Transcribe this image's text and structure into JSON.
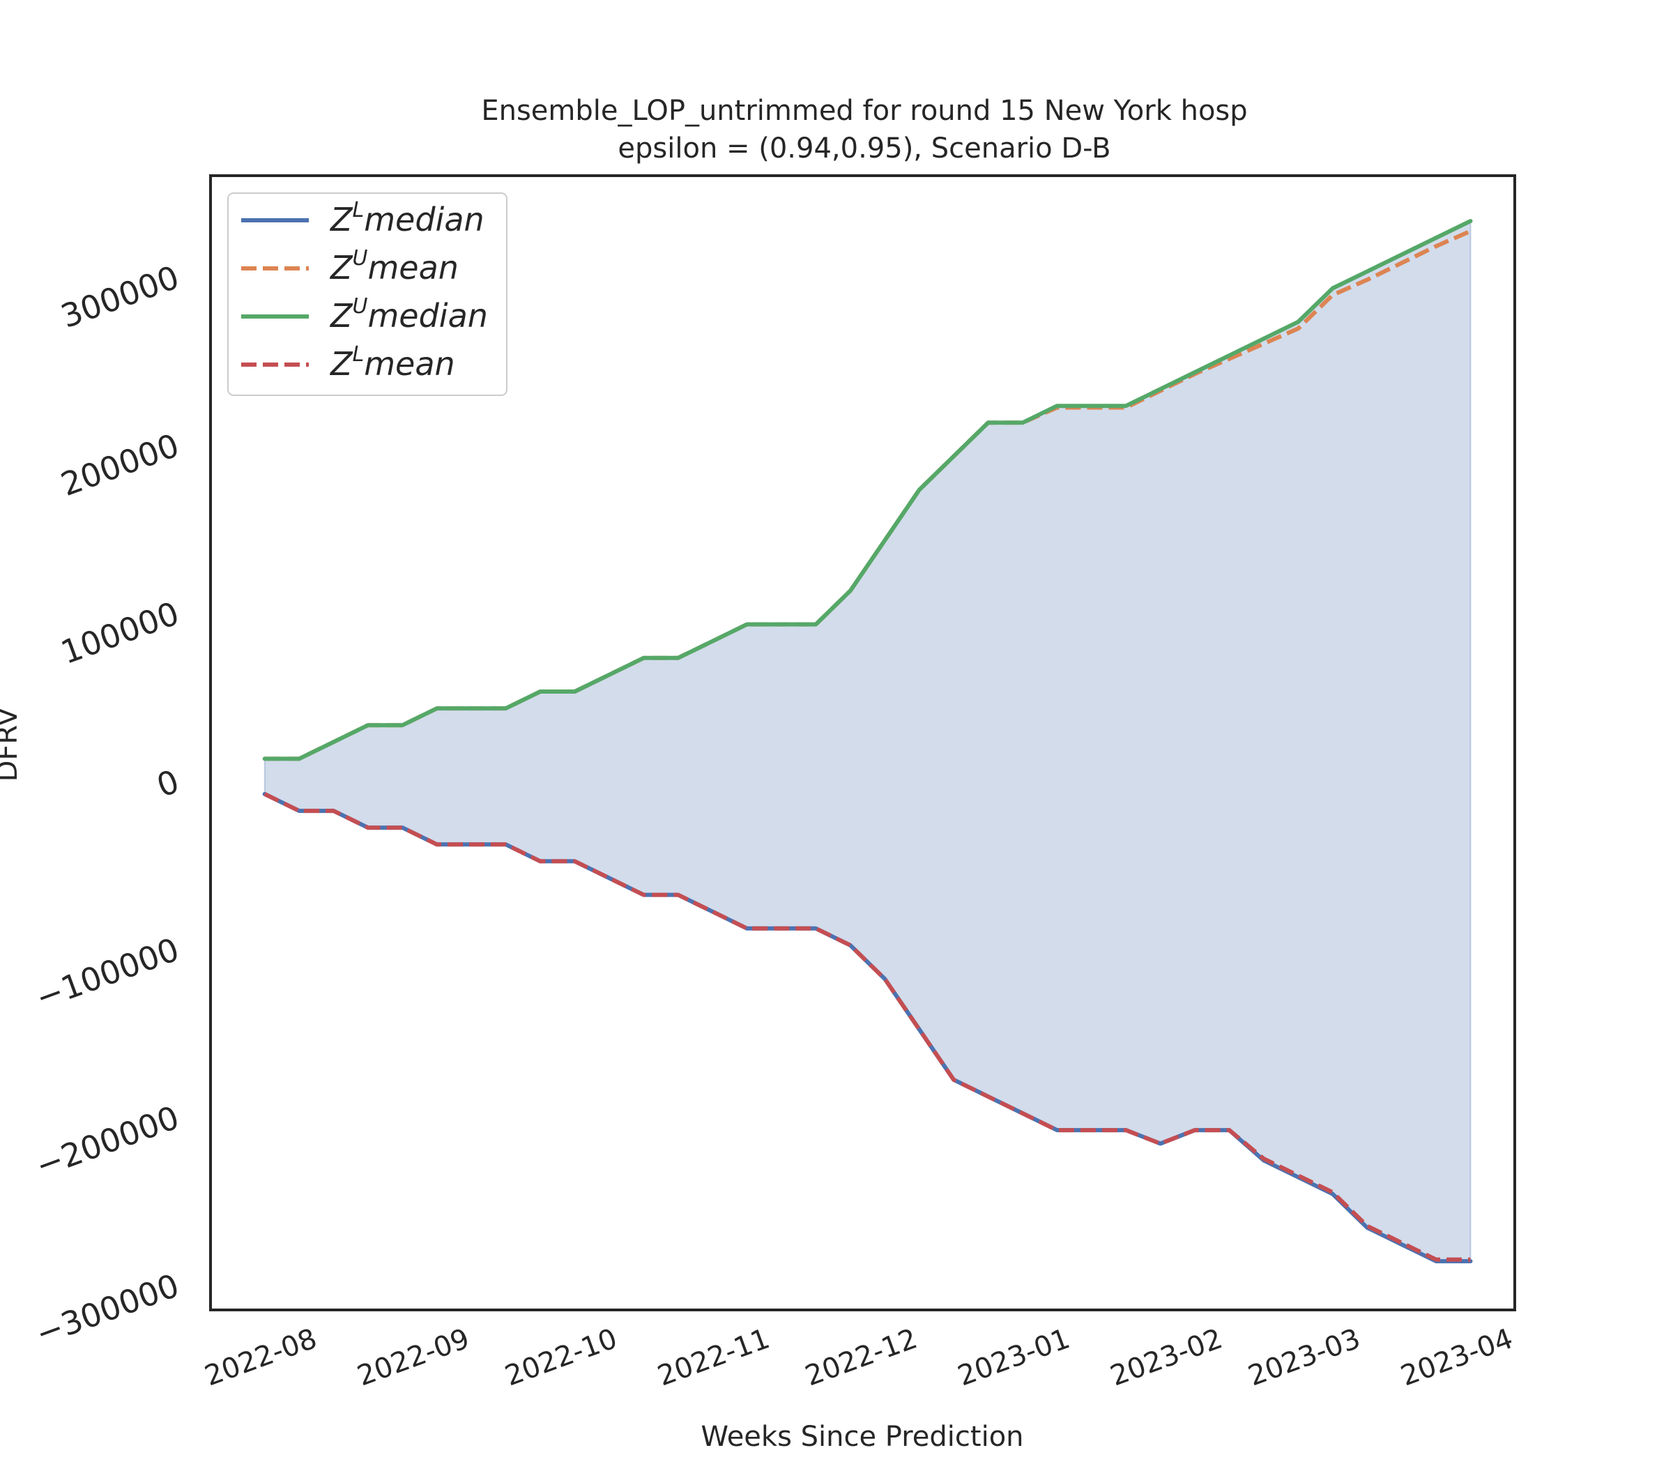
{
  "chart_data": {
    "type": "line",
    "title": "Ensemble_LOP_untrimmed for round 15 New York  hosp",
    "subtitle": "epsilon = (0.94,0.95), Scenario D-B",
    "xlabel": "Weeks Since Prediction",
    "ylabel": "DFRV",
    "xlim": [
      "2022-07-12",
      "2023-04-03"
    ],
    "ylim": [
      -315000,
      360000
    ],
    "xticks": [
      "2022-08-01",
      "2022-09-01",
      "2022-10-01",
      "2022-11-01",
      "2022-12-01",
      "2023-01-01",
      "2023-02-01",
      "2023-03-01",
      "2023-04-01"
    ],
    "xtick_labels": [
      "2022-08",
      "2022-09",
      "2022-10",
      "2022-11",
      "2022-12",
      "2023-01",
      "2023-02",
      "2023-03",
      "2023-04"
    ],
    "yticks": [
      -300000,
      -200000,
      -100000,
      0,
      100000,
      200000,
      300000
    ],
    "ytick_labels": [
      "−300000",
      "−200000",
      "−100000",
      "0",
      "100000",
      "200000",
      "300000"
    ],
    "grid": false,
    "legend_position": "top-left",
    "x": [
      "2022-07-23",
      "2022-07-30",
      "2022-08-06",
      "2022-08-13",
      "2022-08-20",
      "2022-08-27",
      "2022-09-03",
      "2022-09-10",
      "2022-09-17",
      "2022-09-24",
      "2022-10-01",
      "2022-10-08",
      "2022-10-15",
      "2022-10-22",
      "2022-10-29",
      "2022-11-05",
      "2022-11-12",
      "2022-11-19",
      "2022-11-26",
      "2022-12-03",
      "2022-12-10",
      "2022-12-17",
      "2022-12-24",
      "2022-12-31",
      "2023-01-07",
      "2023-01-14",
      "2023-01-21",
      "2023-01-28",
      "2023-02-04",
      "2023-02-11",
      "2023-02-18",
      "2023-02-25",
      "2023-03-04",
      "2023-03-11",
      "2023-03-18",
      "2023-03-25"
    ],
    "series": [
      {
        "name": "Z^L median",
        "name_base": "Z",
        "name_sup": "L",
        "name_rest": "median",
        "color": "#4c72b0",
        "dash": "solid",
        "values": [
          -8000,
          -18000,
          -18000,
          -28000,
          -28000,
          -38000,
          -38000,
          -38000,
          -48000,
          -48000,
          -58000,
          -68000,
          -68000,
          -78000,
          -88000,
          -88000,
          -88000,
          -98000,
          -118000,
          -148000,
          -178000,
          -188000,
          -198000,
          -208000,
          -208000,
          -208000,
          -216000,
          -208000,
          -208000,
          -226000,
          -236000,
          -246000,
          -266000,
          -276000,
          -286000,
          -286000
        ]
      },
      {
        "name": "Z^U mean",
        "name_base": "Z",
        "name_sup": "U",
        "name_rest": "mean",
        "color": "#dd8452",
        "dash": "dashed",
        "values": [
          13000,
          13000,
          23000,
          33000,
          33000,
          43000,
          43000,
          43000,
          53000,
          53000,
          63000,
          73000,
          73000,
          83000,
          93000,
          93000,
          93000,
          113000,
          143000,
          173000,
          193000,
          213000,
          213000,
          222000,
          222000,
          222000,
          232000,
          242000,
          251000,
          260000,
          269000,
          289000,
          298000,
          308000,
          318000,
          327000
        ]
      },
      {
        "name": "Z^U median",
        "name_base": "Z",
        "name_sup": "U",
        "name_rest": "median",
        "color": "#55a868",
        "dash": "solid",
        "values": [
          13000,
          13000,
          23000,
          33000,
          33000,
          43000,
          43000,
          43000,
          53000,
          53000,
          63000,
          73000,
          73000,
          83000,
          93000,
          93000,
          93000,
          113000,
          143000,
          173000,
          193000,
          213000,
          213000,
          223000,
          223000,
          223000,
          233000,
          243000,
          253000,
          263000,
          273000,
          293000,
          303000,
          313000,
          323000,
          333000
        ]
      },
      {
        "name": "Z^L mean",
        "name_base": "Z",
        "name_sup": "L",
        "name_rest": "mean",
        "color": "#c44e52",
        "dash": "dashed",
        "values": [
          -8000,
          -18000,
          -18000,
          -28000,
          -28000,
          -38000,
          -38000,
          -38000,
          -48000,
          -48000,
          -58000,
          -68000,
          -68000,
          -78000,
          -88000,
          -88000,
          -88000,
          -98000,
          -118000,
          -148000,
          -178000,
          -188000,
          -198000,
          -208000,
          -208000,
          -208000,
          -216000,
          -208000,
          -208000,
          -225000,
          -235000,
          -245000,
          -265000,
          -275000,
          -285000,
          -285000
        ]
      }
    ],
    "fill_between": {
      "lower_series": "Z^L median",
      "upper_series": "Z^U median",
      "color": "#4c72b0",
      "opacity": 0.25
    },
    "legend_order": [
      "Z^L median",
      "Z^U mean",
      "Z^U median",
      "Z^L mean"
    ]
  }
}
